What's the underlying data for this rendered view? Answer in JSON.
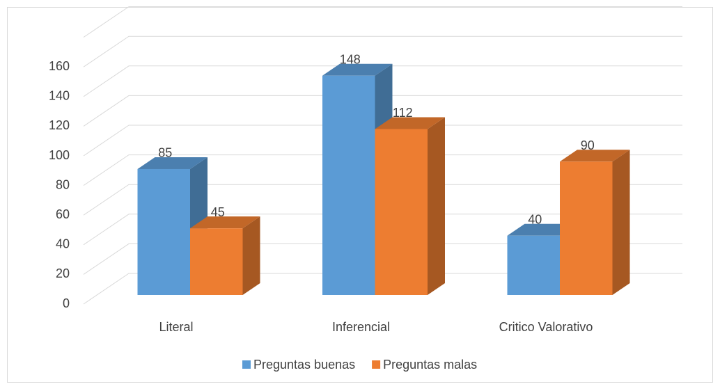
{
  "chart_data": {
    "type": "bar3d",
    "categories": [
      "Literal",
      "Inferencial",
      "Critico Valorativo"
    ],
    "series": [
      {
        "name": "Preguntas buenas",
        "color": "#5b9bd5",
        "values": [
          85,
          148,
          40
        ]
      },
      {
        "name": "Preguntas malas",
        "color": "#ed7d31",
        "values": [
          45,
          112,
          90
        ]
      }
    ],
    "ylim": [
      0,
      180
    ],
    "yticks": [
      0,
      20,
      40,
      60,
      80,
      100,
      120,
      140,
      160
    ],
    "grid": true,
    "legend": "bottom"
  }
}
